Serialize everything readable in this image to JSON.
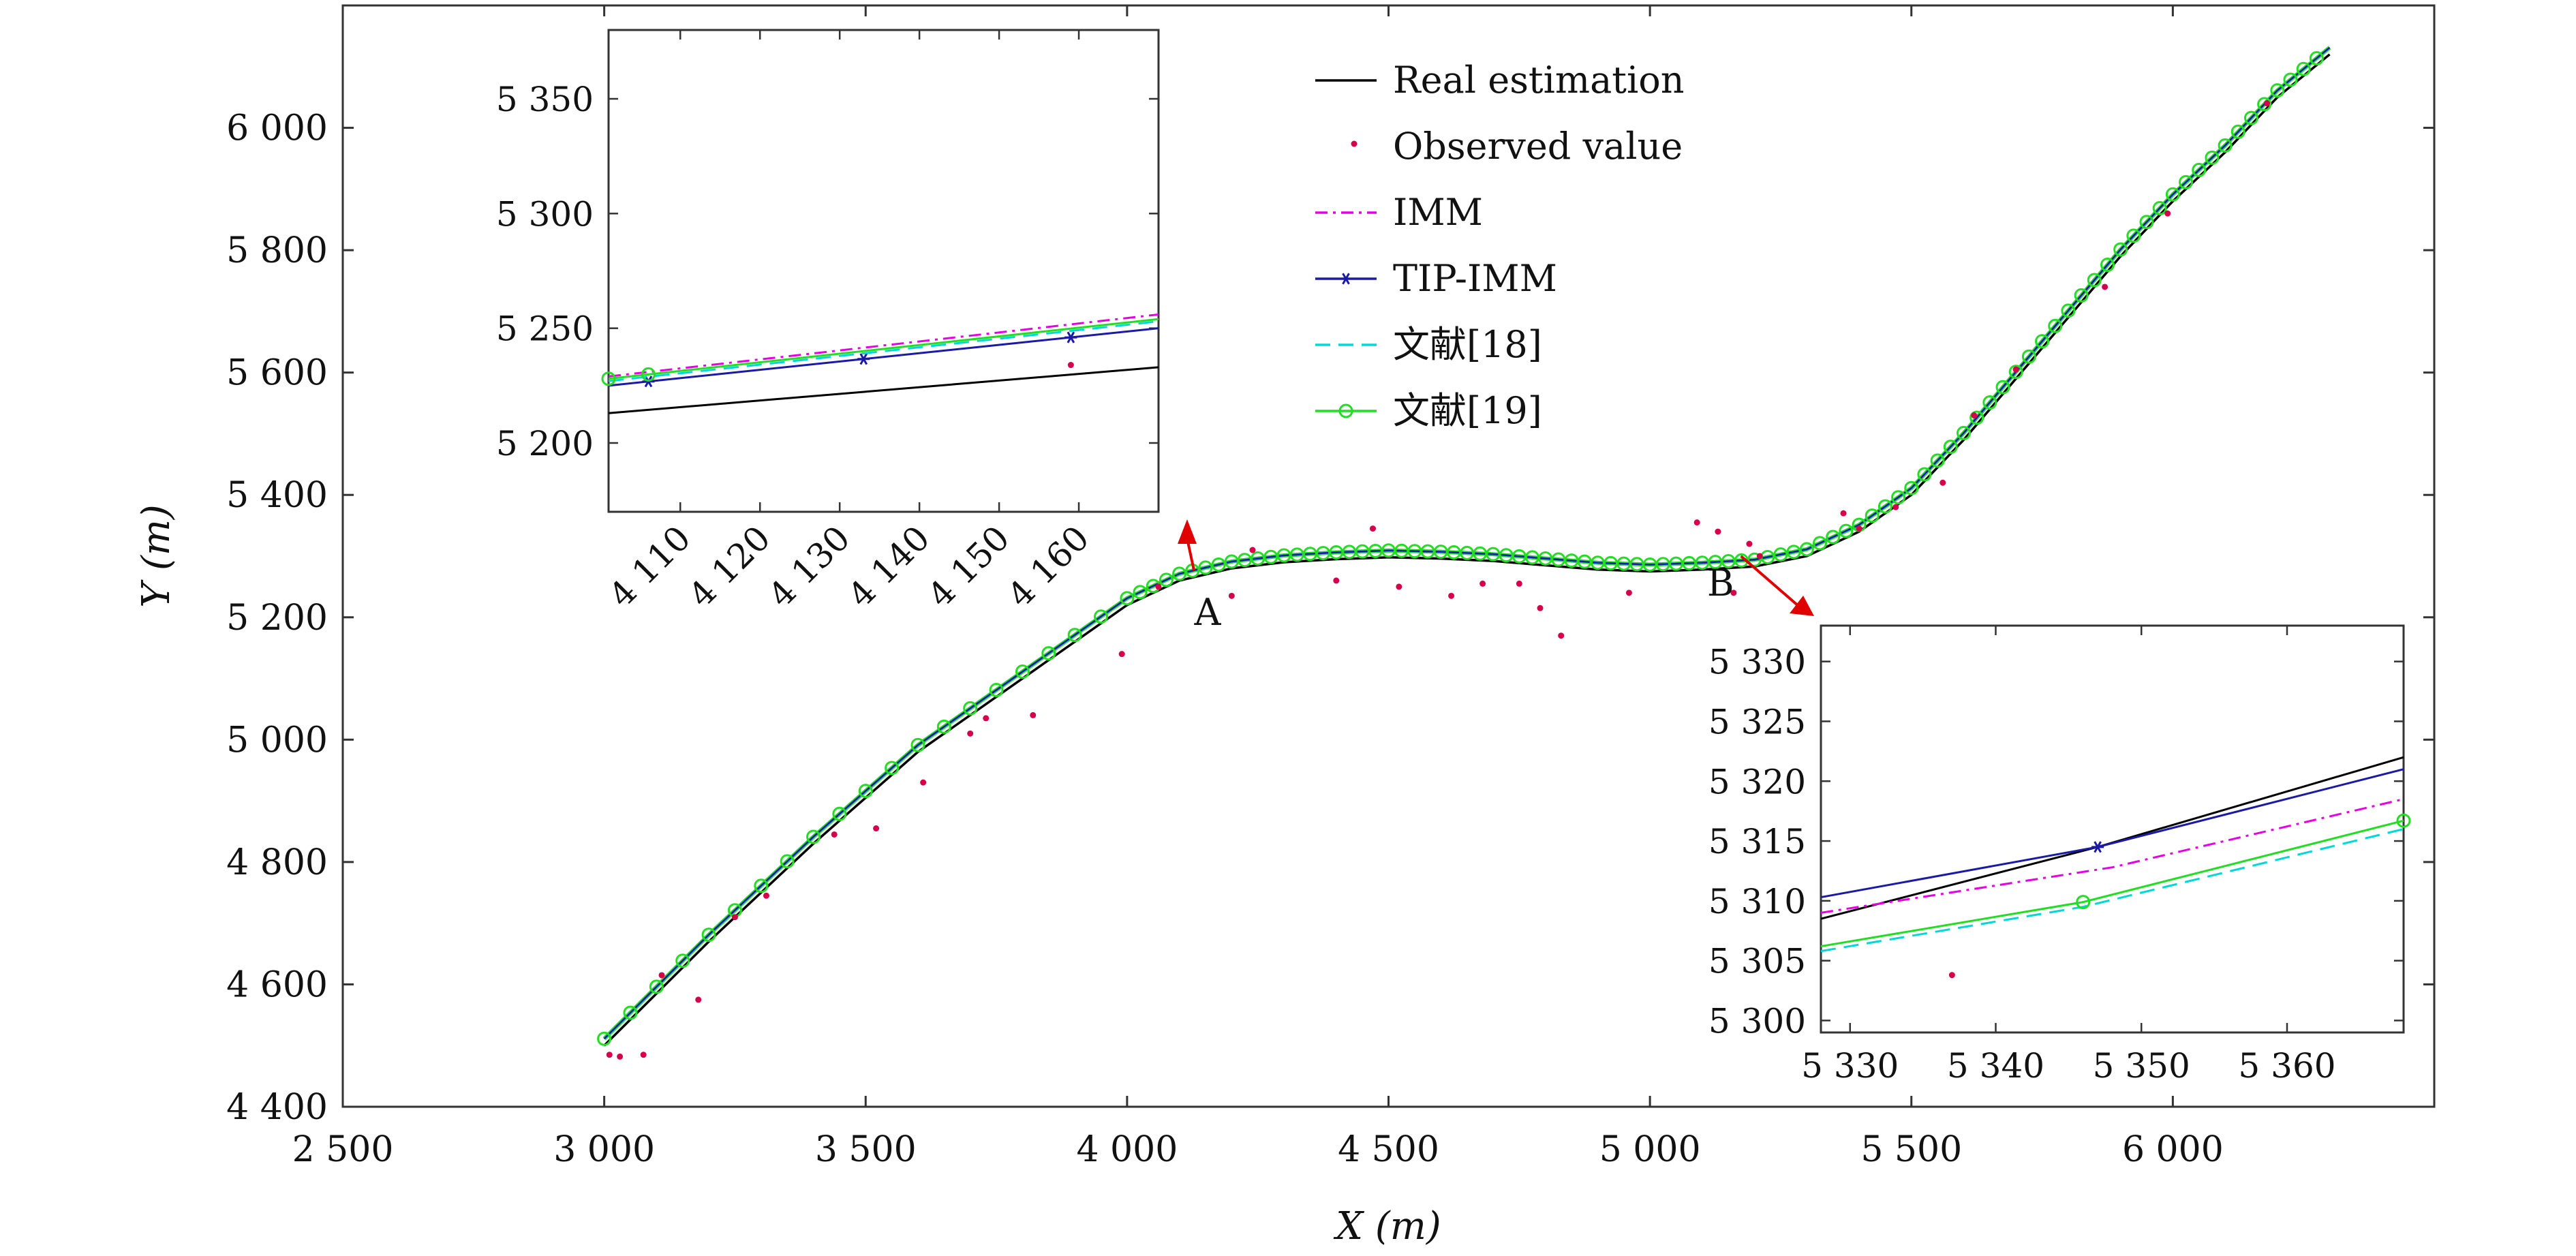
{
  "chart_data": {
    "type": "line",
    "xlabel": "X (m)",
    "ylabel": "Y (m)",
    "xlim": [
      2500,
      6500
    ],
    "ylim": [
      4400,
      6200
    ],
    "xticks": [
      2500,
      3000,
      3500,
      4000,
      4500,
      5000,
      5500,
      6000
    ],
    "xtick_labels": [
      "2 500",
      "3 000",
      "3 500",
      "4 000",
      "4 500",
      "5 000",
      "5 500",
      "6 000"
    ],
    "yticks": [
      4400,
      4600,
      4800,
      5000,
      5200,
      5400,
      5600,
      5800,
      6000
    ],
    "ytick_labels": [
      "4 400",
      "4 600",
      "4 800",
      "5 000",
      "5 200",
      "5 400",
      "5 600",
      "5 800",
      "6 000"
    ],
    "legend": {
      "placement": "top-center",
      "entries": [
        {
          "name": "Real estimation",
          "color": "#000000",
          "style": "solid"
        },
        {
          "name": "Observed value",
          "color": "#d6004a",
          "style": "dots"
        },
        {
          "name": "IMM",
          "color": "#e600e6",
          "style": "dashdot"
        },
        {
          "name": "TIP-IMM",
          "color": "#1a1aa6",
          "style": "solid-star"
        },
        {
          "name": "文献[18]",
          "color": "#00d7d7",
          "style": "dashed"
        },
        {
          "name": "文献[19]",
          "color": "#22dd22",
          "style": "solid-circle"
        }
      ]
    },
    "trajectory": {
      "x": [
        3000,
        3200,
        3400,
        3600,
        3800,
        4000,
        4100,
        4200,
        4300,
        4400,
        4500,
        4600,
        4700,
        4800,
        4900,
        5000,
        5100,
        5200,
        5300,
        5400,
        5500,
        5600,
        5700,
        5800,
        5900,
        6000,
        6100,
        6200,
        6300
      ],
      "y": [
        4500,
        4670,
        4830,
        4980,
        5100,
        5220,
        5260,
        5280,
        5290,
        5295,
        5298,
        5296,
        5292,
        5285,
        5278,
        5275,
        5278,
        5283,
        5300,
        5340,
        5400,
        5490,
        5590,
        5690,
        5790,
        5880,
        5960,
        6050,
        6120
      ]
    },
    "observed_points": {
      "x": [
        3010,
        3030,
        3075,
        3110,
        3180,
        3250,
        3310,
        3440,
        3520,
        3610,
        3700,
        3730,
        3820,
        3990,
        4060,
        4200,
        4240,
        4400,
        4470,
        4520,
        4620,
        4680,
        4750,
        4790,
        4830,
        4960,
        5090,
        5130,
        5160,
        5190,
        5210,
        5370,
        5400,
        5470,
        5560,
        5620,
        5700,
        5870,
        5990,
        6180
      ],
      "y": [
        4485,
        4482,
        4485,
        4615,
        4575,
        4710,
        4745,
        4845,
        4855,
        4930,
        5010,
        5035,
        5040,
        5140,
        5250,
        5235,
        5310,
        5260,
        5345,
        5250,
        5235,
        5255,
        5255,
        5215,
        5170,
        5240,
        5355,
        5340,
        5240,
        5320,
        5300,
        5370,
        5345,
        5380,
        5420,
        5530,
        5605,
        5740,
        5860,
        6040
      ]
    },
    "annotations": [
      "A",
      "B"
    ],
    "insets": [
      {
        "label": "A",
        "xlim": [
          4101,
          4170
        ],
        "ylim": [
          5170,
          5380
        ],
        "xticks": [
          4110,
          4120,
          4130,
          4140,
          4150,
          4160
        ],
        "xtick_labels": [
          "4 110",
          "4 120",
          "4 130",
          "4 140",
          "4 150",
          "4 160"
        ],
        "yticks": [
          5200,
          5250,
          5300,
          5350
        ],
        "ytick_labels": [
          "5 200",
          "5 250",
          "5 300",
          "5 350"
        ],
        "series": [
          {
            "name": "Real estimation",
            "x": [
              4101,
              4170
            ],
            "y": [
              5213,
              5233
            ]
          },
          {
            "name": "IMM",
            "x": [
              4101,
              4170
            ],
            "y": [
              5229,
              5256
            ]
          },
          {
            "name": "TIP-IMM",
            "x": [
              4101,
              4170
            ],
            "y": [
              5225,
              5250
            ]
          },
          {
            "name": "文献[18]",
            "x": [
              4101,
              4170
            ],
            "y": [
              5227,
              5253
            ]
          },
          {
            "name": "文献[19]",
            "x": [
              4101,
              4170
            ],
            "y": [
              5228,
              5254
            ]
          }
        ],
        "observed": {
          "x": [
            4159
          ],
          "y": [
            5234
          ]
        }
      },
      {
        "label": "B",
        "xlim": [
          5328,
          5368
        ],
        "ylim": [
          5299,
          5333
        ],
        "xticks": [
          5330,
          5340,
          5350,
          5360
        ],
        "xtick_labels": [
          "5 330",
          "5 340",
          "5 350",
          "5 360"
        ],
        "yticks": [
          5300,
          5305,
          5310,
          5315,
          5320,
          5325,
          5330
        ],
        "ytick_labels": [
          "5 300",
          "5 305",
          "5 310",
          "5 315",
          "5 320",
          "5 325",
          "5 330"
        ],
        "series": [
          {
            "name": "Real estimation",
            "x": [
              5328,
              5347,
              5368
            ],
            "y": [
              5308.5,
              5314.5,
              5322
            ]
          },
          {
            "name": "IMM",
            "x": [
              5328,
              5348,
              5368
            ],
            "y": [
              5309,
              5312.8,
              5318.5
            ]
          },
          {
            "name": "TIP-IMM",
            "x": [
              5328,
              5347,
              5368
            ],
            "y": [
              5310.3,
              5314.5,
              5321
            ]
          },
          {
            "name": "文献[18]",
            "x": [
              5328,
              5346,
              5368
            ],
            "y": [
              5305.8,
              5309.5,
              5316
            ]
          },
          {
            "name": "文献[19]",
            "x": [
              5328,
              5346,
              5368
            ],
            "y": [
              5306.2,
              5309.9,
              5316.7
            ]
          }
        ],
        "observed": {
          "x": [
            5337
          ],
          "y": [
            5303.8
          ]
        }
      }
    ]
  }
}
